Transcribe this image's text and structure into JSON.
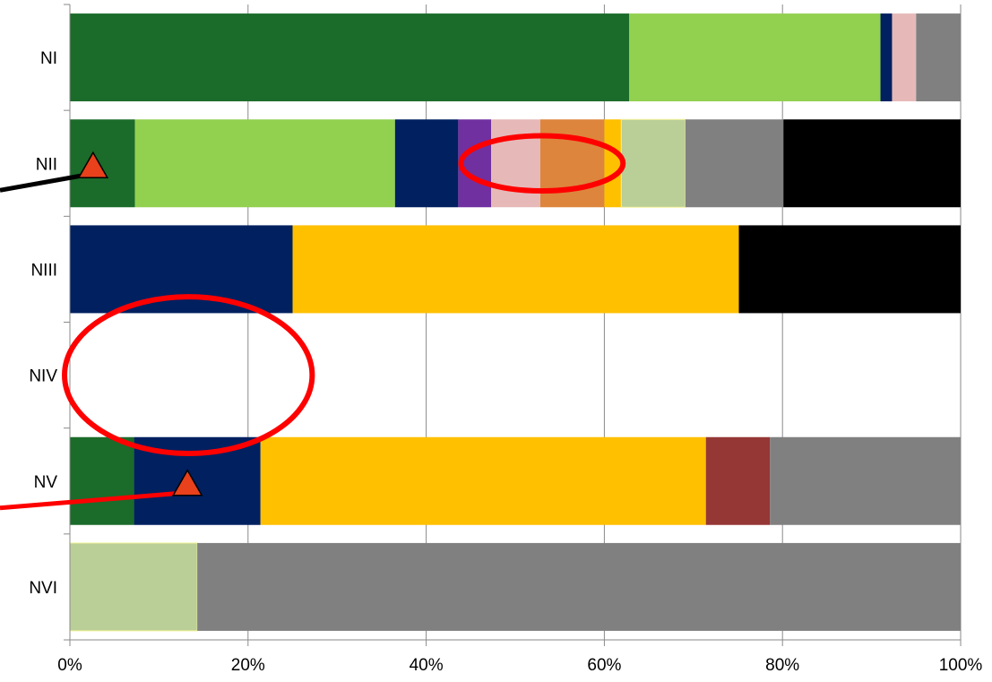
{
  "chart_data": {
    "type": "bar",
    "orientation": "horizontal",
    "stacked": true,
    "percent_stacked": true,
    "categories": [
      "NI",
      "NII",
      "NIII",
      "NIV",
      "NV",
      "NVI"
    ],
    "x_ticks": [
      "0%",
      "20%",
      "40%",
      "60%",
      "80%",
      "100%"
    ],
    "xlim": [
      0,
      100
    ],
    "grid": "vertical",
    "legend": "none",
    "segments": [
      [
        {
          "value": 62.8,
          "color": "#1B6B2A"
        },
        {
          "value": 28.2,
          "color": "#92D050"
        },
        {
          "value": 1.3,
          "color": "#002060"
        },
        {
          "value": 2.7,
          "color": "#E6B9B8"
        },
        {
          "value": 5.0,
          "color": "#808080"
        }
      ],
      [
        {
          "value": 7.3,
          "color": "#1B6B2A"
        },
        {
          "value": 29.2,
          "color": "#92D050"
        },
        {
          "value": 7.1,
          "color": "#002060"
        },
        {
          "value": 3.7,
          "color": "#7030A0"
        },
        {
          "value": 5.5,
          "color": "#E6B9B8"
        },
        {
          "value": 7.2,
          "color": "#DD853D"
        },
        {
          "value": 1.9,
          "color": "#FFC000"
        },
        {
          "value": 7.2,
          "color": "#BACE98"
        },
        {
          "value": 11.0,
          "color": "#808080"
        },
        {
          "value": 19.9,
          "color": "#000000"
        }
      ],
      [
        {
          "value": 25.0,
          "color": "#002060"
        },
        {
          "value": 50.1,
          "color": "#FFC000"
        },
        {
          "value": 24.9,
          "color": "#000000"
        }
      ],
      [],
      [
        {
          "value": 7.2,
          "color": "#1B6B2A"
        },
        {
          "value": 14.2,
          "color": "#002060"
        },
        {
          "value": 50.0,
          "color": "#FFC000"
        },
        {
          "value": 7.2,
          "color": "#953735"
        },
        {
          "value": 21.4,
          "color": "#808080"
        }
      ],
      [
        {
          "value": 14.3,
          "color": "#BACE98"
        },
        {
          "value": 85.7,
          "color": "#808080"
        }
      ]
    ],
    "annotations": [
      {
        "type": "ellipse",
        "color": "#FF0000",
        "cx": 53,
        "cy_category": "NII",
        "rx_pct": 9.1,
        "ry_cat": 0.52
      },
      {
        "type": "ellipse",
        "color": "#FF0000",
        "cx": 13.3,
        "cy_category": "NIV",
        "rx_pct": 13.9,
        "ry_cat": 1.48
      },
      {
        "type": "triangle-marker",
        "color": "#E8411B",
        "x": 2.6,
        "category": "NII",
        "leader_color": "#000000"
      },
      {
        "type": "triangle-marker",
        "color": "#E8411B",
        "x": 13.2,
        "category": "NV",
        "leader_color": "#FF0000"
      }
    ]
  }
}
